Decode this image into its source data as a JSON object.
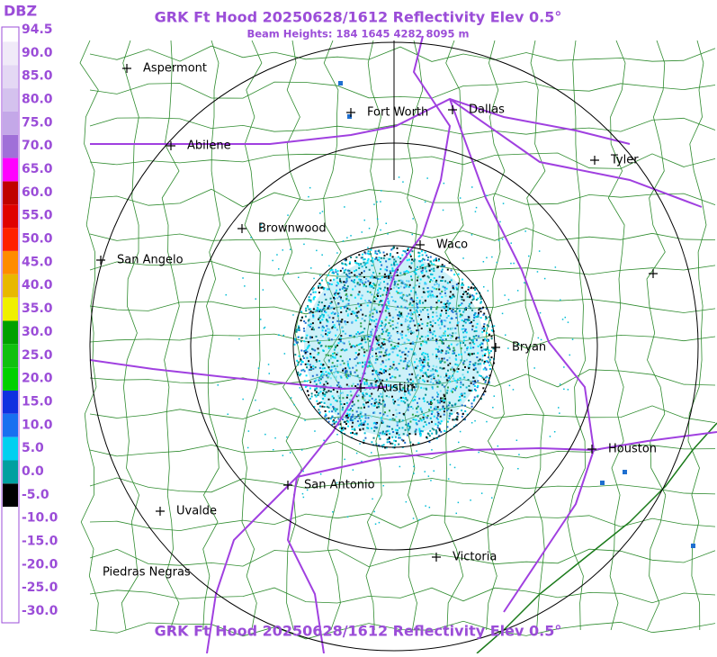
{
  "header": {
    "title": "GRK Ft Hood 20250628/1612 Reflectivity Elev 0.5°",
    "subtitle": "Beam Heights: 184 1645 4282 8095 m"
  },
  "footer": {
    "title": "GRK Ft Hood 20250628/1612 Reflectivity Elev 0.5°"
  },
  "legend": {
    "unit": "DBZ",
    "labels": [
      "94.5",
      "90.0",
      "85.0",
      "80.0",
      "75.0",
      "70.0",
      "65.0",
      "60.0",
      "55.0",
      "50.0",
      "45.0",
      "40.0",
      "35.0",
      "30.0",
      "25.0",
      "20.0",
      "15.0",
      "10.0",
      "5.0",
      "0.0",
      "-5.0",
      "-10.0",
      "-15.0",
      "-20.0",
      "-25.0",
      "-30.0"
    ]
  },
  "cities": [
    "Aspermont",
    "Abilene",
    "Fort Worth",
    "Dallas",
    "Tyler",
    "Brownwood",
    "Waco",
    "San Angelo",
    "Bryan",
    "Austin",
    "Houston",
    "San Antonio",
    "Uvalde",
    "Victoria",
    "Piedras Negras"
  ]
}
